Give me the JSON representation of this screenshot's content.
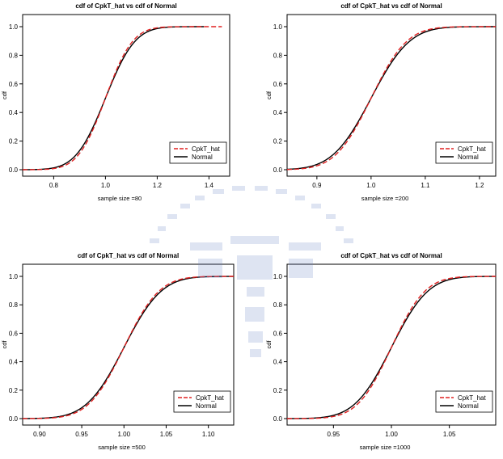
{
  "chart_data": [
    {
      "type": "line",
      "title": "cdf of CpkT_hat vs cdf of Normal",
      "xlabel": "sample size =80",
      "ylabel": "cdf",
      "xlim": [
        0.68,
        1.48
      ],
      "ylim": [
        0,
        1
      ],
      "xticks": [
        "0.8",
        "1.0",
        "1.2",
        "1.4"
      ],
      "yticks": [
        "0.0",
        "0.2",
        "0.4",
        "0.6",
        "0.8",
        "1.0"
      ],
      "legend": "bottom-right",
      "series": [
        {
          "name": "CpkT_hat",
          "color": "#e02020",
          "style": "dashed",
          "mean": 1.0,
          "sd": 0.083,
          "xmax": 1.45
        },
        {
          "name": "Normal",
          "color": "#000000",
          "style": "solid",
          "mean": 1.0,
          "sd": 0.09,
          "xmax": 1.38
        }
      ]
    },
    {
      "type": "line",
      "title": "cdf of CpkT_hat vs cdf of Normal",
      "xlabel": "sample size =200",
      "ylabel": "cdf",
      "xlim": [
        0.845,
        1.23
      ],
      "ylim": [
        0,
        1
      ],
      "xticks": [
        "0.9",
        "1.0",
        "1.1",
        "1.2"
      ],
      "yticks": [
        "0.0",
        "0.2",
        "0.4",
        "0.6",
        "0.8",
        "1.0"
      ],
      "legend": "bottom-right",
      "series": [
        {
          "name": "CpkT_hat",
          "color": "#e02020",
          "style": "dashed",
          "mean": 1.0,
          "sd": 0.052,
          "xmax": 1.23
        },
        {
          "name": "Normal",
          "color": "#000000",
          "style": "solid",
          "mean": 1.0,
          "sd": 0.056,
          "xmax": 1.23
        }
      ]
    },
    {
      "type": "line",
      "title": "cdf of CpkT_hat vs cdf of Normal",
      "xlabel": "sample size =500",
      "ylabel": "cdf",
      "xlim": [
        0.88,
        1.13
      ],
      "ylim": [
        0,
        1
      ],
      "xticks": [
        "0.90",
        "0.95",
        "1.00",
        "1.05",
        "1.10"
      ],
      "yticks": [
        "0.0",
        "0.2",
        "0.4",
        "0.6",
        "0.8",
        "1.0"
      ],
      "legend": "bottom-right",
      "series": [
        {
          "name": "CpkT_hat",
          "color": "#e02020",
          "style": "dashed",
          "mean": 1.0,
          "sd": 0.033,
          "xmax": 1.13
        },
        {
          "name": "Normal",
          "color": "#000000",
          "style": "solid",
          "mean": 1.0,
          "sd": 0.035,
          "xmax": 1.13
        }
      ]
    },
    {
      "type": "line",
      "title": "cdf of CpkT_hat vs cdf of Normal",
      "xlabel": "sample size =1000",
      "ylabel": "cdf",
      "xlim": [
        0.91,
        1.09
      ],
      "ylim": [
        0,
        1
      ],
      "xticks": [
        "0.95",
        "1.00",
        "1.05"
      ],
      "yticks": [
        "0.0",
        "0.2",
        "0.4",
        "0.6",
        "0.8",
        "1.0"
      ],
      "legend": "bottom-right",
      "series": [
        {
          "name": "CpkT_hat",
          "color": "#e02020",
          "style": "dashed",
          "mean": 1.0,
          "sd": 0.023,
          "xmax": 1.09
        },
        {
          "name": "Normal",
          "color": "#000000",
          "style": "solid",
          "mean": 1.0,
          "sd": 0.025,
          "xmax": 1.09
        }
      ]
    }
  ]
}
